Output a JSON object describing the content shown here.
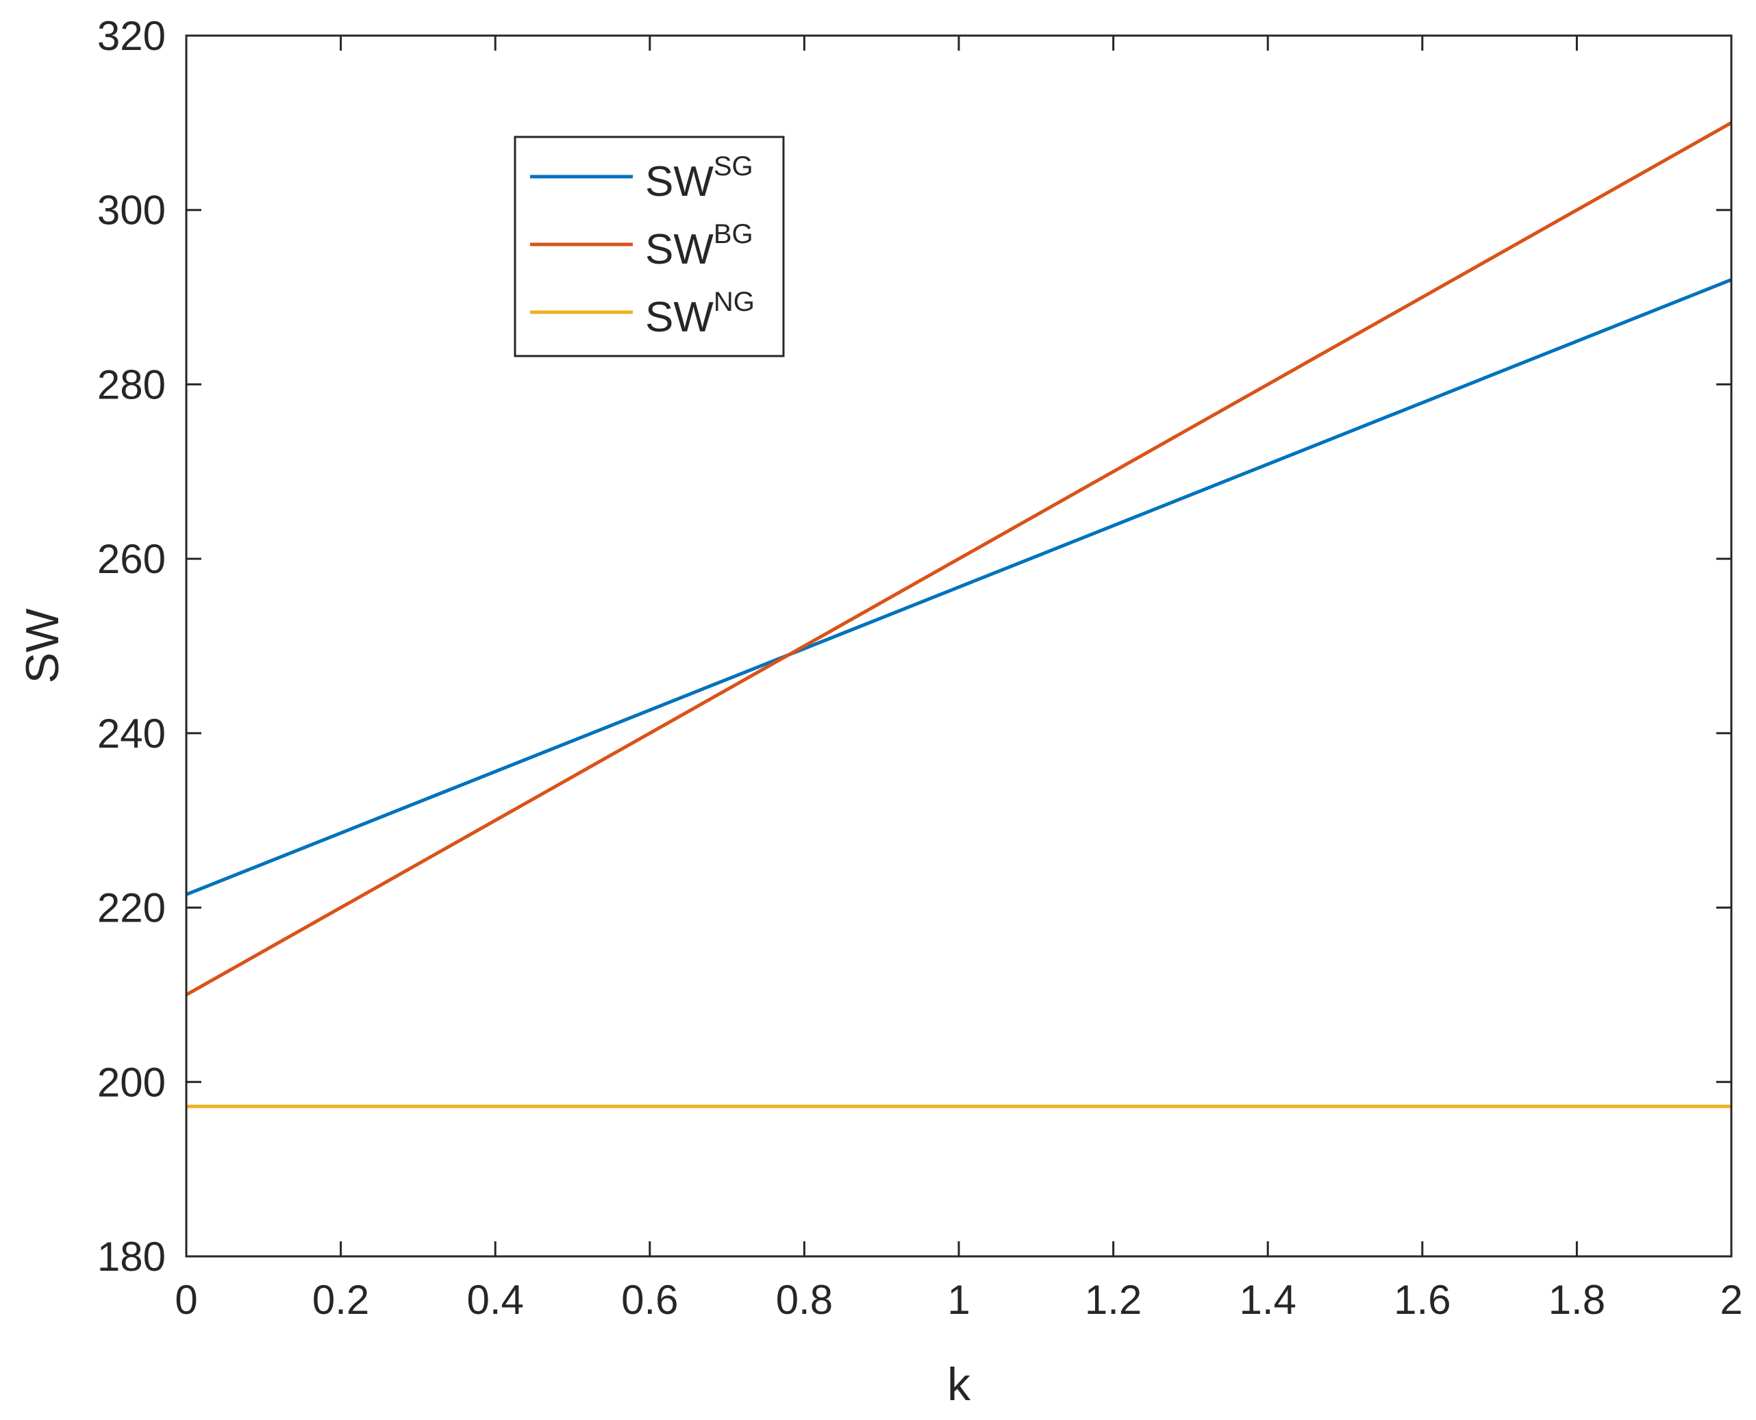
{
  "chart_data": {
    "type": "line",
    "title": "",
    "xlabel": "k",
    "ylabel": "SW",
    "xlim": [
      0,
      2
    ],
    "ylim": [
      180,
      320
    ],
    "x_ticks": [
      0,
      0.2,
      0.4,
      0.6,
      0.8,
      1,
      1.2,
      1.4,
      1.6,
      1.8,
      2
    ],
    "x_tick_labels": [
      "0",
      "0.2",
      "0.4",
      "0.6",
      "0.8",
      "1",
      "1.2",
      "1.4",
      "1.6",
      "1.8",
      "2"
    ],
    "y_ticks": [
      180,
      200,
      220,
      240,
      260,
      280,
      300,
      320
    ],
    "y_tick_labels": [
      "180",
      "200",
      "220",
      "240",
      "260",
      "280",
      "300",
      "320"
    ],
    "grid": false,
    "legend_position": "upper-left",
    "series": [
      {
        "name": "SW",
        "name_superscript": "SG",
        "color": "#0072BD",
        "x": [
          0,
          2
        ],
        "y": [
          221.5,
          292
        ]
      },
      {
        "name": "SW",
        "name_superscript": "BG",
        "color": "#D95319",
        "x": [
          0,
          2
        ],
        "y": [
          210,
          310
        ]
      },
      {
        "name": "SW",
        "name_superscript": "NG",
        "color": "#EDB120",
        "x": [
          0,
          2
        ],
        "y": [
          197.2,
          197.2
        ]
      }
    ]
  }
}
